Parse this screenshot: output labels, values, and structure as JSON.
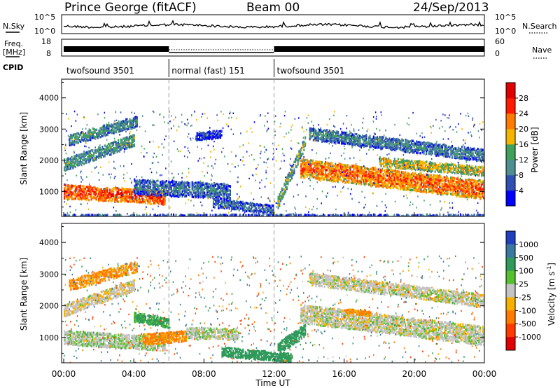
{
  "header": {
    "station": "Prince George (fitACF)",
    "beam": "Beam 00",
    "date": "24/Sep/2013"
  },
  "noise_panel": {
    "left_label": "N.Sky",
    "right_label": "N.Search",
    "ticks": [
      "10^5",
      "10^0"
    ],
    "right_ticks": [
      "10^5",
      "10^0"
    ]
  },
  "freq_panel": {
    "left_label_1": "Freq.",
    "left_label_2": "[MHz]",
    "left_ticks": [
      "18",
      "8"
    ],
    "right_label": "Nave",
    "right_ticks": [
      "60",
      "0"
    ]
  },
  "cpid": {
    "label": "CPID",
    "segments": [
      {
        "label": "twofsound 3501",
        "start_hour": 0,
        "end_hour": 6
      },
      {
        "label": "normal (fast) 151",
        "start_hour": 6,
        "end_hour": 12
      },
      {
        "label": "twofsound 3501",
        "start_hour": 12,
        "end_hour": 24
      }
    ]
  },
  "power_colorbar": {
    "label": "Power [dB]",
    "ticks": [
      "28",
      "24",
      "20",
      "16",
      "12",
      "8",
      "4"
    ],
    "colors": [
      "#0000ff",
      "#3150b4",
      "#4e8f8f",
      "#3ea05a",
      "#f5b400",
      "#ff7a00",
      "#ff1a00",
      "#e00000"
    ]
  },
  "velocity_colorbar": {
    "label": "Velocity [m s",
    "label_sup": "-1",
    "label_end": "]",
    "ticks": [
      "1000",
      "500",
      "100",
      "25",
      "-25",
      "-100",
      "-500",
      "-1000"
    ],
    "colors": [
      "#2040c0",
      "#3a78a0",
      "#2f9a5a",
      "#55c030",
      "#c4c4c4",
      "#f5b000",
      "#ff7a00",
      "#ff3a00",
      "#e00000"
    ]
  },
  "chart_data": {
    "type": "heatmap",
    "xlabel": "Time UT",
    "x_ticks": [
      "00:00",
      "04:00",
      "08:00",
      "12:00",
      "16:00",
      "20:00",
      "00:00"
    ],
    "ylabel": "Slant Range [km]",
    "y_ticks": [
      1000,
      2000,
      3000,
      4000
    ],
    "x_range_hours": [
      0,
      24
    ],
    "y_range_km": [
      200,
      4600
    ],
    "dividers_hours": [
      6,
      12
    ],
    "panels": [
      {
        "name": "Power [dB]",
        "echo_bands": [
          {
            "t0": 0.0,
            "t1": 5.8,
            "r0": 1050,
            "r1": 850,
            "w": 450,
            "v": 26
          },
          {
            "t0": 0.0,
            "t1": 4.0,
            "r0": 1900,
            "r1": 2700,
            "w": 380,
            "v": 13
          },
          {
            "t0": 0.3,
            "t1": 4.2,
            "r0": 2700,
            "r1": 3300,
            "w": 350,
            "v": 12
          },
          {
            "t0": 4.0,
            "t1": 9.5,
            "r0": 1200,
            "r1": 1050,
            "w": 500,
            "v": 10
          },
          {
            "t0": 7.5,
            "t1": 9.0,
            "r0": 2800,
            "r1": 2900,
            "w": 250,
            "v": 6
          },
          {
            "t0": 8.5,
            "t1": 12.0,
            "r0": 700,
            "r1": 450,
            "w": 300,
            "v": 9
          },
          {
            "t0": 12.2,
            "t1": 13.8,
            "r0": 700,
            "r1": 2700,
            "w": 400,
            "v": 15
          },
          {
            "t0": 13.5,
            "t1": 24.0,
            "r0": 1800,
            "r1": 1100,
            "w": 600,
            "v": 24
          },
          {
            "t0": 14.0,
            "t1": 24.0,
            "r0": 2900,
            "r1": 2200,
            "w": 400,
            "v": 11
          },
          {
            "t0": 18.0,
            "t1": 24.0,
            "r0": 2000,
            "r1": 1700,
            "w": 300,
            "v": 19
          },
          {
            "t0": 0.0,
            "t1": 24.0,
            "r0": 250,
            "r1": 250,
            "w": 150,
            "v": 8
          }
        ]
      },
      {
        "name": "Velocity",
        "echo_bands": [
          {
            "t0": 0.0,
            "t1": 5.8,
            "r0": 1050,
            "r1": 850,
            "w": 450,
            "v": 10
          },
          {
            "t0": 0.0,
            "t1": 4.0,
            "r0": 1900,
            "r1": 2700,
            "w": 380,
            "v": -10
          },
          {
            "t0": 0.3,
            "t1": 4.2,
            "r0": 2700,
            "r1": 3300,
            "w": 350,
            "v": -60
          },
          {
            "t0": 4.0,
            "t1": 6.0,
            "r0": 1700,
            "r1": 1500,
            "w": 300,
            "v": 80
          },
          {
            "t0": 4.5,
            "t1": 7.0,
            "r0": 1000,
            "r1": 1100,
            "w": 350,
            "v": -80
          },
          {
            "t0": 7.0,
            "t1": 10.0,
            "r0": 1200,
            "r1": 1150,
            "w": 350,
            "v": 5
          },
          {
            "t0": 9.0,
            "t1": 13.0,
            "r0": 600,
            "r1": 400,
            "w": 300,
            "v": 150
          },
          {
            "t0": 12.2,
            "t1": 13.8,
            "r0": 700,
            "r1": 1300,
            "w": 400,
            "v": 150
          },
          {
            "t0": 13.5,
            "t1": 24.0,
            "r0": 1800,
            "r1": 1100,
            "w": 600,
            "v": 0
          },
          {
            "t0": 14.0,
            "t1": 24.0,
            "r0": 2900,
            "r1": 2200,
            "w": 400,
            "v": 0
          },
          {
            "t0": 16.0,
            "t1": 17.5,
            "r0": 1900,
            "r1": 1800,
            "w": 150,
            "v": -80
          }
        ]
      }
    ]
  }
}
